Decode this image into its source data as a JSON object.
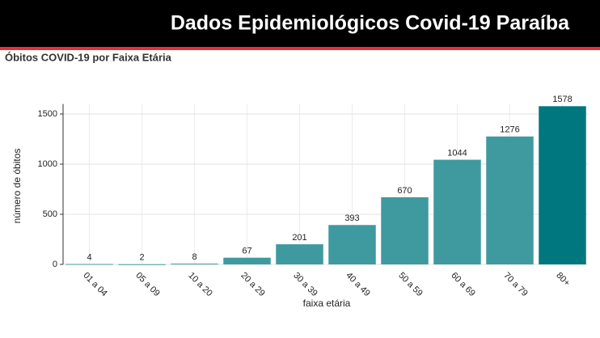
{
  "header": {
    "title": "Dados Epidemiológicos Covid-19 Paraíba"
  },
  "chart_data": {
    "type": "bar",
    "title": "Óbitos COVID-19 por Faixa Etária",
    "x_label": "faixa etária",
    "y_label": "número de óbitos",
    "categories": [
      "01 a 04",
      "05 a 09",
      "10 a 20",
      "20 a 29",
      "30 a 39",
      "40 a 49",
      "50 a 59",
      "60 a 69",
      "70 a 79",
      "80+"
    ],
    "values": [
      4,
      2,
      8,
      67,
      201,
      393,
      670,
      1044,
      1276,
      1578
    ],
    "colors": [
      "#3f9aa0",
      "#3f9aa0",
      "#3f9aa0",
      "#3f9aa0",
      "#3f9aa0",
      "#3f9aa0",
      "#3f9aa0",
      "#3f9aa0",
      "#3f9aa0",
      "#00777f"
    ],
    "ylim": [
      0,
      1600
    ],
    "yticks": [
      0,
      500,
      1000,
      1500
    ],
    "grid": true
  }
}
